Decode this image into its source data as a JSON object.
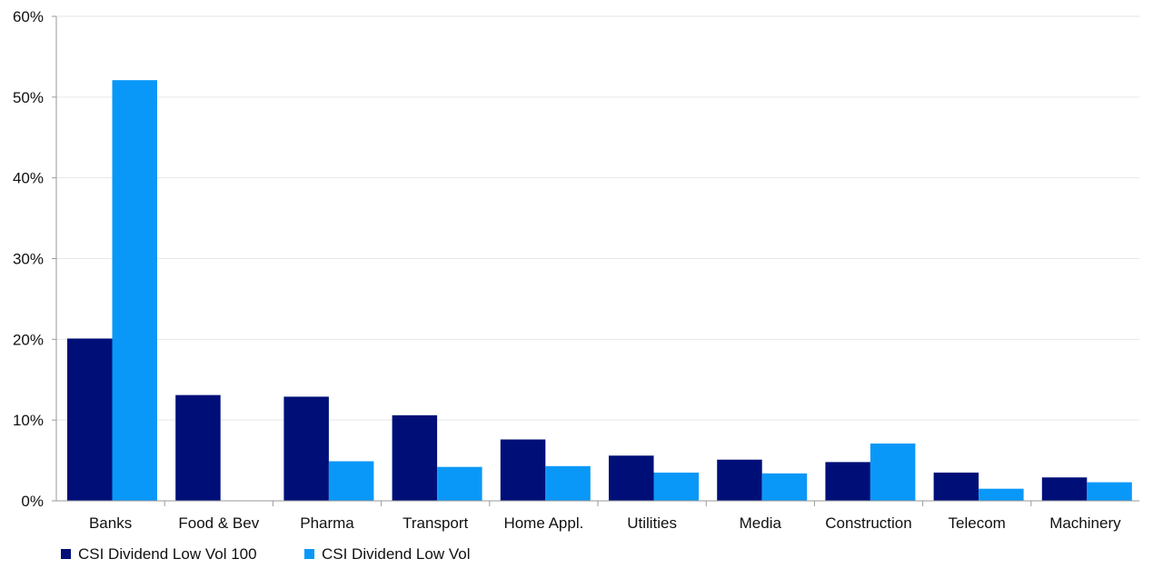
{
  "chart_data": {
    "type": "bar",
    "title": "",
    "xlabel": "",
    "ylabel": "",
    "ylim": [
      0,
      60
    ],
    "yticks": [
      0,
      10,
      20,
      30,
      40,
      50,
      60
    ],
    "ytick_labels": [
      "0%",
      "10%",
      "20%",
      "30%",
      "40%",
      "50%",
      "60%"
    ],
    "categories": [
      "Banks",
      "Food & Bev",
      "Pharma",
      "Transport",
      "Home Appl.",
      "Utilities",
      "Media",
      "Construction",
      "Telecom",
      "Machinery"
    ],
    "series": [
      {
        "name": "CSI Dividend Low Vol 100",
        "color": "#000F78",
        "values": [
          20.1,
          13.1,
          12.9,
          10.6,
          7.6,
          5.6,
          5.1,
          4.8,
          3.5,
          2.9
        ]
      },
      {
        "name": "CSI Dividend Low Vol",
        "color": "#0A98F8",
        "values": [
          52.1,
          0,
          4.9,
          4.2,
          4.3,
          3.5,
          3.4,
          7.1,
          1.5,
          2.3
        ]
      }
    ],
    "grid": true,
    "legend": "bottom-left"
  }
}
